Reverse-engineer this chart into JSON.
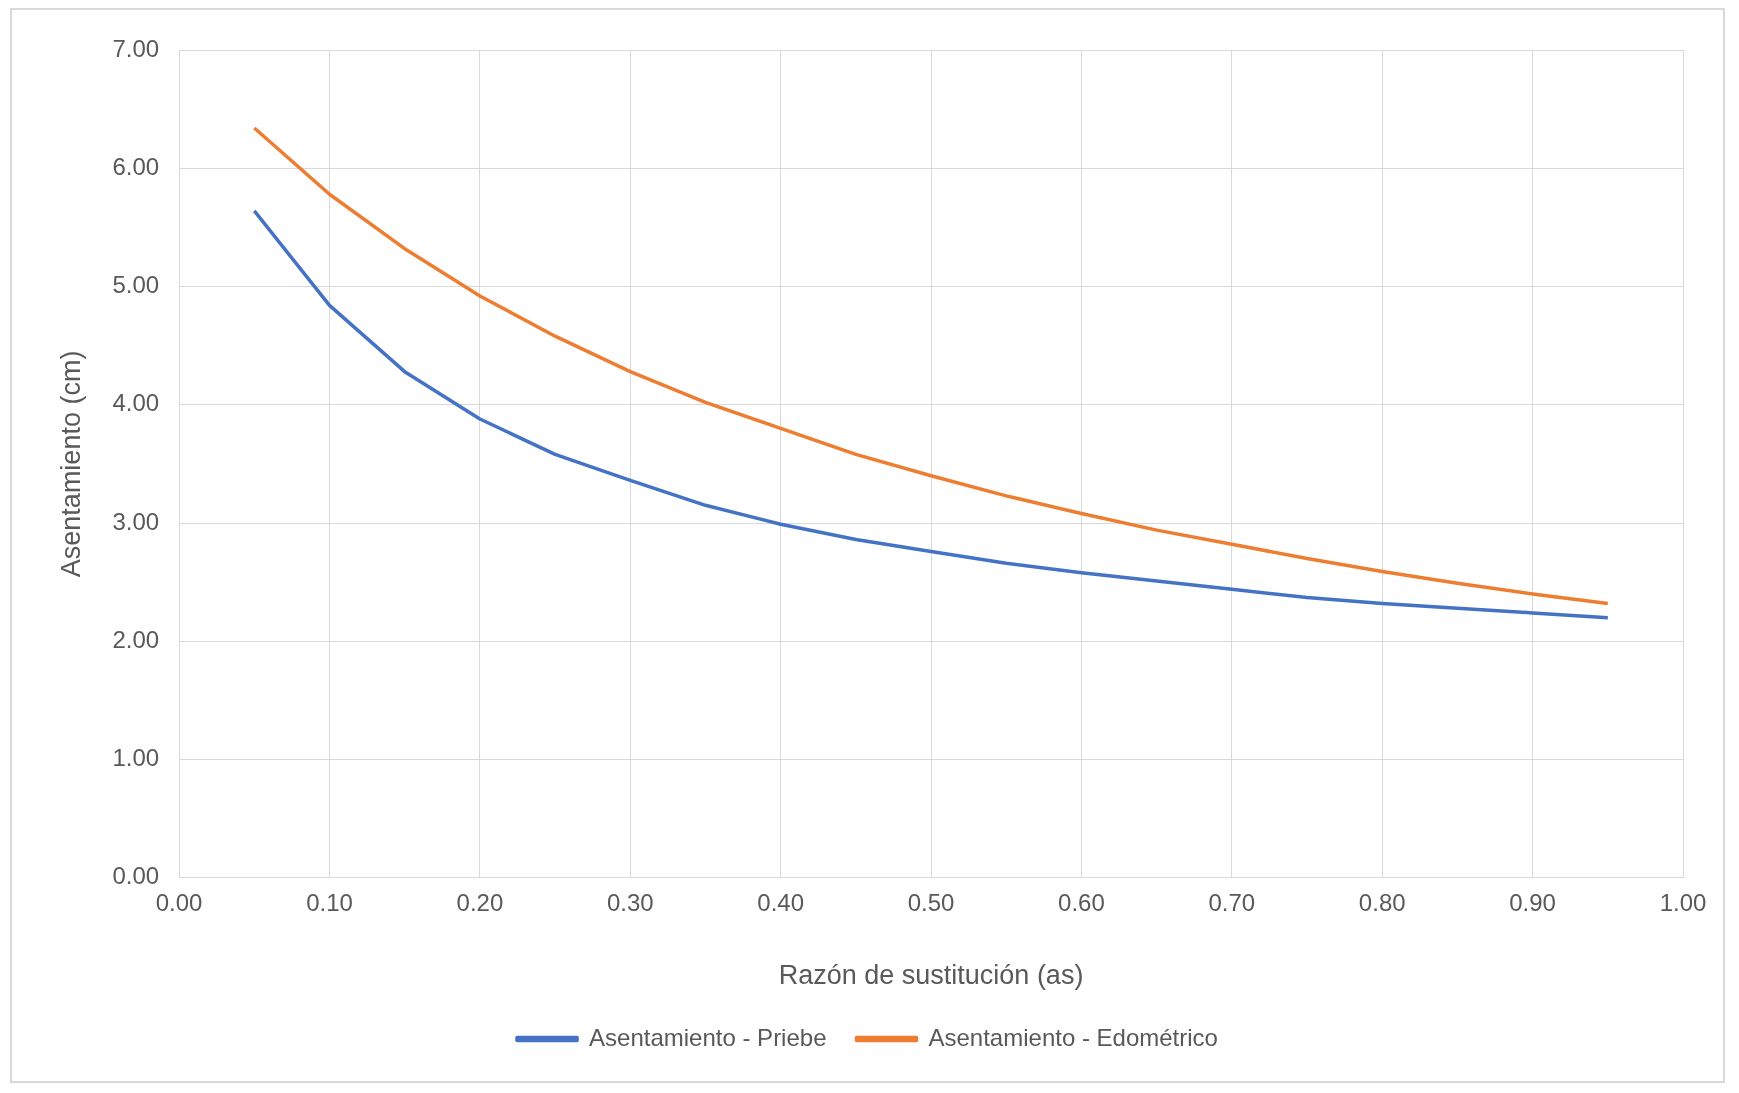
{
  "chart_data": {
    "type": "line",
    "xlabel": "Razón de sustitución (as)",
    "ylabel": "Asentamiento (cm)",
    "x": [
      0.05,
      0.1,
      0.15,
      0.2,
      0.25,
      0.3,
      0.35,
      0.4,
      0.45,
      0.5,
      0.55,
      0.6,
      0.65,
      0.7,
      0.75,
      0.8,
      0.85,
      0.9,
      0.95
    ],
    "series": [
      {
        "name": "Asentamiento - Priebe",
        "color": "#4472c4",
        "values": [
          5.64,
          4.84,
          4.28,
          3.88,
          3.58,
          3.36,
          3.15,
          2.99,
          2.86,
          2.76,
          2.66,
          2.58,
          2.51,
          2.44,
          2.37,
          2.32,
          2.28,
          2.24,
          2.2
        ]
      },
      {
        "name": "Asentamiento - Edométrico",
        "color": "#ed7d31",
        "values": [
          6.34,
          5.78,
          5.32,
          4.92,
          4.58,
          4.28,
          4.02,
          3.8,
          3.58,
          3.4,
          3.23,
          3.08,
          2.94,
          2.82,
          2.7,
          2.59,
          2.49,
          2.4,
          2.32
        ]
      }
    ],
    "xlim": [
      0,
      1
    ],
    "xticks": [
      {
        "value": 0,
        "label": "0.00"
      },
      {
        "value": 0.1,
        "label": "0.10"
      },
      {
        "value": 0.2,
        "label": "0.20"
      },
      {
        "value": 0.3,
        "label": "0.30"
      },
      {
        "value": 0.4,
        "label": "0.40"
      },
      {
        "value": 0.5,
        "label": "0.50"
      },
      {
        "value": 0.6,
        "label": "0.60"
      },
      {
        "value": 0.7,
        "label": "0.70"
      },
      {
        "value": 0.8,
        "label": "0.80"
      },
      {
        "value": 0.9,
        "label": "0.90"
      },
      {
        "value": 1,
        "label": "1.00"
      }
    ],
    "ylim": [
      0,
      7
    ],
    "yticks": [
      {
        "value": 0,
        "label": "0.00"
      },
      {
        "value": 1,
        "label": "1.00"
      },
      {
        "value": 2,
        "label": "2.00"
      },
      {
        "value": 3,
        "label": "3.00"
      },
      {
        "value": 4,
        "label": "4.00"
      },
      {
        "value": 5,
        "label": "5.00"
      },
      {
        "value": 6,
        "label": "6.00"
      },
      {
        "value": 7,
        "label": "7.00"
      }
    ],
    "grid": true,
    "legend": "bottom",
    "marker": "none",
    "line_style": "solid"
  }
}
